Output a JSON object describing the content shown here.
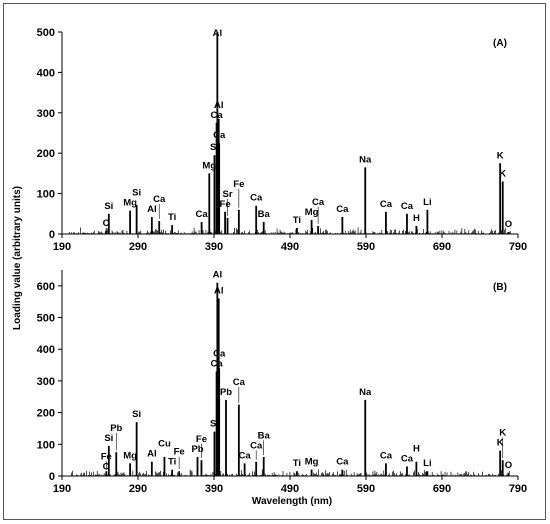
{
  "ylabel": "Loading value (arbitrary units)",
  "xlabel": "Wavelength (nm)",
  "chart_data": [
    {
      "type": "bar",
      "panel_label": "(A)",
      "xlim": [
        190,
        790
      ],
      "ylim": [
        0,
        500
      ],
      "x_ticks": [
        190,
        290,
        390,
        490,
        590,
        690,
        790
      ],
      "y_ticks": [
        0,
        100,
        200,
        300,
        400,
        500
      ],
      "grid": false,
      "peaks": [
        {
          "x": 247.9,
          "y": 8,
          "label": "C"
        },
        {
          "x": 251.6,
          "y": 50,
          "label": "Si"
        },
        {
          "x": 279.6,
          "y": 58,
          "label": "Mg"
        },
        {
          "x": 288.2,
          "y": 72,
          "label": "Si"
        },
        {
          "x": 308.2,
          "y": 42,
          "label": "Al"
        },
        {
          "x": 317.9,
          "y": 32,
          "label": "Ca"
        },
        {
          "x": 334.9,
          "y": 22,
          "label": "Ti"
        },
        {
          "x": 373.7,
          "y": 30,
          "label": "Ca"
        },
        {
          "x": 383.8,
          "y": 150,
          "label": "Mg"
        },
        {
          "x": 390.6,
          "y": 195,
          "label": "Si"
        },
        {
          "x": 393.4,
          "y": 275,
          "label": "Ca"
        },
        {
          "x": 394.4,
          "y": 500,
          "label": "Al"
        },
        {
          "x": 396.2,
          "y": 285,
          "label": "Al"
        },
        {
          "x": 396.8,
          "y": 225,
          "label": "Ca"
        },
        {
          "x": 404.6,
          "y": 55,
          "label": "Fe"
        },
        {
          "x": 407.8,
          "y": 40,
          "label": "Sr"
        },
        {
          "x": 422.7,
          "y": 60,
          "label": "Fe"
        },
        {
          "x": 445.5,
          "y": 70,
          "label": "Ca"
        },
        {
          "x": 455.4,
          "y": 30,
          "label": "Ba"
        },
        {
          "x": 499.1,
          "y": 15,
          "label": "Ti"
        },
        {
          "x": 518.4,
          "y": 35,
          "label": "Mg"
        },
        {
          "x": 527.0,
          "y": 20,
          "label": "Ca"
        },
        {
          "x": 558.9,
          "y": 42,
          "label": "Ca"
        },
        {
          "x": 589.0,
          "y": 165,
          "label": "Na"
        },
        {
          "x": 616.2,
          "y": 55,
          "label": "Ca"
        },
        {
          "x": 643.9,
          "y": 50,
          "label": "Ca"
        },
        {
          "x": 656.3,
          "y": 20,
          "label": "H"
        },
        {
          "x": 670.8,
          "y": 60,
          "label": "Li"
        },
        {
          "x": 766.5,
          "y": 175,
          "label": "K"
        },
        {
          "x": 769.9,
          "y": 130,
          "label": "K"
        },
        {
          "x": 777.4,
          "y": 5,
          "label": "O"
        }
      ]
    },
    {
      "type": "bar",
      "panel_label": "(B)",
      "xlim": [
        190,
        790
      ],
      "ylim": [
        0,
        650
      ],
      "x_ticks": [
        190,
        290,
        390,
        490,
        590,
        690,
        790
      ],
      "y_ticks": [
        0,
        100,
        200,
        300,
        400,
        500,
        600
      ],
      "grid": false,
      "peaks": [
        {
          "x": 247.9,
          "y": 5,
          "label": "C"
        },
        {
          "x": 248.3,
          "y": 15,
          "label": "Fe"
        },
        {
          "x": 251.6,
          "y": 95,
          "label": "Si"
        },
        {
          "x": 261.4,
          "y": 75,
          "label": "Pb"
        },
        {
          "x": 279.6,
          "y": 40,
          "label": "Mg"
        },
        {
          "x": 288.2,
          "y": 170,
          "label": "Si"
        },
        {
          "x": 308.2,
          "y": 45,
          "label": "Al"
        },
        {
          "x": 324.8,
          "y": 60,
          "label": "Cu"
        },
        {
          "x": 334.9,
          "y": 20,
          "label": "Ti"
        },
        {
          "x": 344.1,
          "y": 15,
          "label": "Fe"
        },
        {
          "x": 368.3,
          "y": 60,
          "label": "Pb"
        },
        {
          "x": 373.5,
          "y": 50,
          "label": "Fe"
        },
        {
          "x": 390.6,
          "y": 140,
          "label": "Si"
        },
        {
          "x": 393.4,
          "y": 330,
          "label": "Ca"
        },
        {
          "x": 394.4,
          "y": 610,
          "label": "Al"
        },
        {
          "x": 396.2,
          "y": 560,
          "label": "Al"
        },
        {
          "x": 396.8,
          "y": 340,
          "label": "Ca"
        },
        {
          "x": 405.8,
          "y": 240,
          "label": "Pb"
        },
        {
          "x": 422.7,
          "y": 225,
          "label": "Ca"
        },
        {
          "x": 430.3,
          "y": 40,
          "label": "Ca"
        },
        {
          "x": 445.5,
          "y": 45,
          "label": "Ca"
        },
        {
          "x": 455.4,
          "y": 60,
          "label": "Ba"
        },
        {
          "x": 499.1,
          "y": 15,
          "label": "Ti"
        },
        {
          "x": 518.4,
          "y": 20,
          "label": "Mg"
        },
        {
          "x": 558.9,
          "y": 20,
          "label": "Ca"
        },
        {
          "x": 589.0,
          "y": 240,
          "label": "Na"
        },
        {
          "x": 616.2,
          "y": 40,
          "label": "Ca"
        },
        {
          "x": 643.9,
          "y": 30,
          "label": "Ca"
        },
        {
          "x": 656.3,
          "y": 45,
          "label": "H"
        },
        {
          "x": 670.8,
          "y": 15,
          "label": "Li"
        },
        {
          "x": 766.5,
          "y": 80,
          "label": "K"
        },
        {
          "x": 769.9,
          "y": 50,
          "label": "K"
        },
        {
          "x": 777.4,
          "y": 10,
          "label": "O"
        }
      ]
    }
  ]
}
